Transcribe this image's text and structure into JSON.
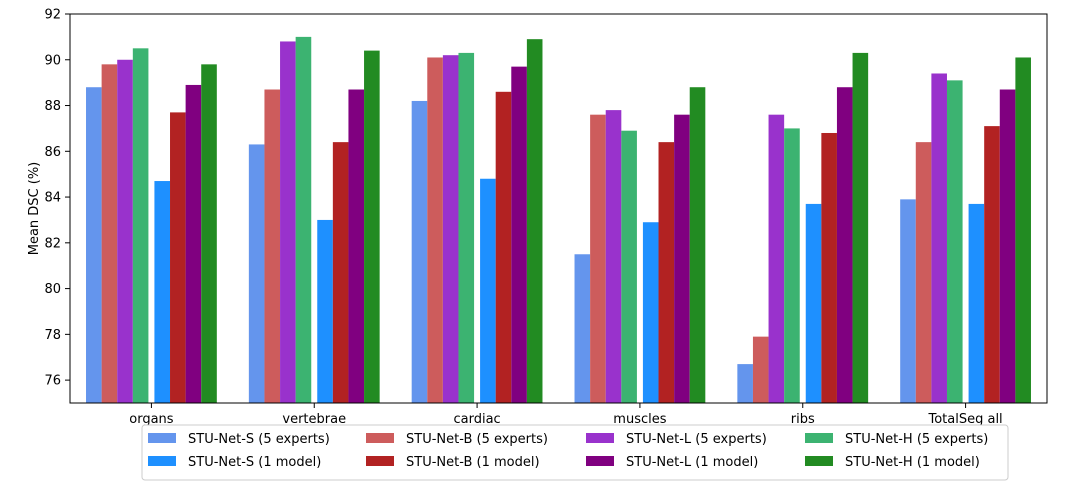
{
  "chart_data": {
    "type": "bar",
    "title": "",
    "xlabel": "",
    "ylabel": "Mean DSC (%)",
    "ylim": [
      75,
      92
    ],
    "yticks": [
      76,
      78,
      80,
      82,
      84,
      86,
      88,
      90,
      92
    ],
    "categories": [
      "organs",
      "vertebrae",
      "cardiac",
      "muscles",
      "ribs",
      "TotalSeg all"
    ],
    "grid": false,
    "legend_position": "bottom-center",
    "series": [
      {
        "name": "STU-Net-S (5 experts)",
        "color": "#6495ED",
        "values": [
          88.8,
          86.3,
          88.2,
          81.5,
          76.7,
          83.9
        ]
      },
      {
        "name": "STU-Net-B (5 experts)",
        "color": "#CD5C5C",
        "values": [
          89.8,
          88.7,
          90.1,
          87.6,
          77.9,
          86.4
        ]
      },
      {
        "name": "STU-Net-L (5 experts)",
        "color": "#9932CC",
        "values": [
          90.0,
          90.8,
          90.2,
          87.8,
          87.6,
          89.4
        ]
      },
      {
        "name": "STU-Net-H (5 experts)",
        "color": "#3CB371",
        "values": [
          90.5,
          91.0,
          90.3,
          86.9,
          87.0,
          89.1
        ]
      },
      {
        "name": "STU-Net-S (1 model)",
        "color": "#1E90FF",
        "values": [
          84.7,
          83.0,
          84.8,
          82.9,
          83.7,
          83.7
        ]
      },
      {
        "name": "STU-Net-B (1 model)",
        "color": "#B22222",
        "values": [
          87.7,
          86.4,
          88.6,
          86.4,
          86.8,
          87.1
        ]
      },
      {
        "name": "STU-Net-L (1 model)",
        "color": "#800080",
        "values": [
          88.9,
          88.7,
          89.7,
          87.6,
          88.8,
          88.7
        ]
      },
      {
        "name": "STU-Net-H (1 model)",
        "color": "#228B22",
        "values": [
          89.8,
          90.4,
          90.9,
          88.8,
          90.3,
          90.1
        ]
      }
    ],
    "legend_order": [
      0,
      4,
      1,
      5,
      2,
      6,
      3,
      7
    ]
  }
}
